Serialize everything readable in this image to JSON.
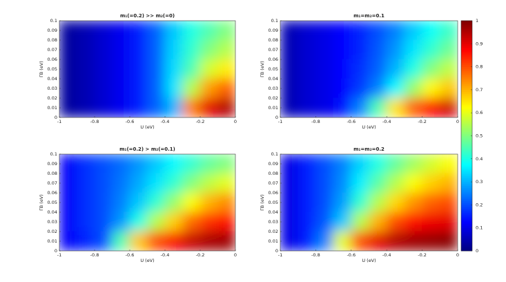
{
  "chart_data": [
    {
      "type": "heatmap",
      "title": "m₁(=0.2) >> m₂(=0)",
      "xlabel": "U (eV)",
      "ylabel": "ΓB (eV)",
      "xlim": [
        -1,
        0
      ],
      "ylim": [
        0,
        0.1
      ],
      "xticks": [
        -1,
        -0.8,
        -0.6,
        -0.4,
        -0.2,
        0
      ],
      "yticks": [
        0,
        0.01,
        0.02,
        0.03,
        0.04,
        0.05,
        0.06,
        0.07,
        0.08,
        0.09,
        0.1
      ],
      "x": [
        -0.95,
        -0.85,
        -0.75,
        -0.65,
        -0.55,
        -0.45,
        -0.35,
        -0.25,
        -0.15,
        -0.05
      ],
      "y": [
        0.09,
        0.07,
        0.05,
        0.03,
        0.01
      ],
      "values": [
        [
          0.03,
          0.05,
          0.08,
          0.11,
          0.15,
          0.22,
          0.32,
          0.4,
          0.45,
          0.5
        ],
        [
          0.03,
          0.05,
          0.08,
          0.11,
          0.15,
          0.22,
          0.33,
          0.42,
          0.5,
          0.55
        ],
        [
          0.03,
          0.05,
          0.08,
          0.11,
          0.15,
          0.22,
          0.34,
          0.45,
          0.58,
          0.64
        ],
        [
          0.03,
          0.05,
          0.08,
          0.11,
          0.15,
          0.22,
          0.35,
          0.55,
          0.72,
          0.78
        ],
        [
          0.03,
          0.05,
          0.08,
          0.11,
          0.15,
          0.22,
          0.3,
          0.75,
          0.9,
          0.95
        ]
      ]
    },
    {
      "type": "heatmap",
      "title": "m₁=m₂=0.1",
      "xlabel": "U (eV)",
      "ylabel": "ΓB (eV)",
      "xlim": [
        -1,
        0
      ],
      "ylim": [
        0,
        0.1
      ],
      "xticks": [
        -1,
        -0.8,
        -0.6,
        -0.4,
        -0.2,
        0
      ],
      "yticks": [
        0,
        0.01,
        0.02,
        0.03,
        0.04,
        0.05,
        0.06,
        0.07,
        0.08,
        0.09,
        0.1
      ],
      "x": [
        -0.95,
        -0.85,
        -0.75,
        -0.65,
        -0.55,
        -0.45,
        -0.35,
        -0.25,
        -0.15,
        -0.05
      ],
      "y": [
        0.09,
        0.07,
        0.05,
        0.03,
        0.01
      ],
      "values": [
        [
          0.05,
          0.08,
          0.1,
          0.13,
          0.16,
          0.2,
          0.25,
          0.32,
          0.38,
          0.43
        ],
        [
          0.05,
          0.08,
          0.1,
          0.13,
          0.16,
          0.21,
          0.27,
          0.35,
          0.42,
          0.48
        ],
        [
          0.05,
          0.08,
          0.1,
          0.13,
          0.17,
          0.22,
          0.3,
          0.4,
          0.5,
          0.56
        ],
        [
          0.05,
          0.08,
          0.1,
          0.13,
          0.18,
          0.25,
          0.37,
          0.52,
          0.63,
          0.68
        ],
        [
          0.05,
          0.08,
          0.1,
          0.14,
          0.25,
          0.45,
          0.65,
          0.78,
          0.87,
          0.92
        ]
      ],
      "zlim": [
        0,
        1
      ],
      "zticks": [
        0,
        0.1,
        0.2,
        0.3,
        0.4,
        0.5,
        0.6,
        0.7,
        0.8,
        0.9,
        1
      ]
    },
    {
      "type": "heatmap",
      "title": "m₁(=0.2) > m₂(=0.1)",
      "xlabel": "U (eV)",
      "ylabel": "ΓB (eV)",
      "xlim": [
        -1,
        0
      ],
      "ylim": [
        0,
        0.1
      ],
      "xticks": [
        -1,
        -0.8,
        -0.6,
        -0.4,
        -0.2,
        0
      ],
      "yticks": [
        0,
        0.01,
        0.02,
        0.03,
        0.04,
        0.05,
        0.06,
        0.07,
        0.08,
        0.09,
        0.1
      ],
      "x": [
        -0.95,
        -0.85,
        -0.75,
        -0.65,
        -0.55,
        -0.45,
        -0.35,
        -0.25,
        -0.15,
        -0.05
      ],
      "y": [
        0.09,
        0.07,
        0.05,
        0.03,
        0.01
      ],
      "values": [
        [
          0.12,
          0.17,
          0.2,
          0.23,
          0.27,
          0.32,
          0.37,
          0.42,
          0.47,
          0.5
        ],
        [
          0.12,
          0.17,
          0.2,
          0.24,
          0.29,
          0.35,
          0.42,
          0.5,
          0.56,
          0.6
        ],
        [
          0.12,
          0.17,
          0.2,
          0.25,
          0.32,
          0.42,
          0.52,
          0.62,
          0.7,
          0.74
        ],
        [
          0.12,
          0.17,
          0.2,
          0.27,
          0.4,
          0.55,
          0.67,
          0.77,
          0.83,
          0.86
        ],
        [
          0.12,
          0.16,
          0.2,
          0.45,
          0.68,
          0.8,
          0.88,
          0.93,
          0.96,
          0.97
        ]
      ]
    },
    {
      "type": "heatmap",
      "title": "m₁=m₂=0.2",
      "xlabel": "U (eV)",
      "ylabel": "ΓB (eV)",
      "xlim": [
        -1,
        0
      ],
      "ylim": [
        0,
        0.1
      ],
      "xticks": [
        -1,
        -0.8,
        -0.6,
        -0.4,
        -0.2,
        0
      ],
      "yticks": [
        0,
        0.01,
        0.02,
        0.03,
        0.04,
        0.05,
        0.06,
        0.07,
        0.08,
        0.09,
        0.1
      ],
      "x": [
        -0.95,
        -0.85,
        -0.75,
        -0.65,
        -0.55,
        -0.45,
        -0.35,
        -0.25,
        -0.15,
        -0.05
      ],
      "y": [
        0.09,
        0.07,
        0.05,
        0.03,
        0.01
      ],
      "values": [
        [
          0.1,
          0.15,
          0.2,
          0.25,
          0.33,
          0.4,
          0.47,
          0.53,
          0.58,
          0.62
        ],
        [
          0.1,
          0.15,
          0.2,
          0.26,
          0.36,
          0.46,
          0.55,
          0.62,
          0.67,
          0.7
        ],
        [
          0.1,
          0.15,
          0.2,
          0.28,
          0.42,
          0.55,
          0.66,
          0.73,
          0.78,
          0.8
        ],
        [
          0.1,
          0.15,
          0.21,
          0.32,
          0.55,
          0.7,
          0.8,
          0.86,
          0.89,
          0.9
        ],
        [
          0.1,
          0.15,
          0.25,
          0.6,
          0.8,
          0.9,
          0.95,
          0.97,
          0.98,
          0.99
        ]
      ]
    }
  ]
}
